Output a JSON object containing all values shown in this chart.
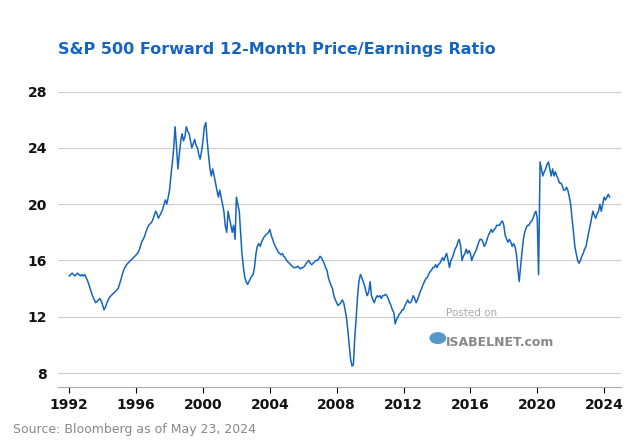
{
  "title": "S&P 500 Forward 12-Month Price/Earnings Ratio",
  "title_color": "#1565c0",
  "title_fontsize": 11.5,
  "line_color": "#1565c0",
  "line_width": 1.1,
  "background_color": "#ffffff",
  "grid_color": "#cccccc",
  "source_text": "Source: Bloomberg as of May 23, 2024",
  "source_color": "#888888",
  "source_fontsize": 9,
  "watermark_line1": "Posted on",
  "watermark_line2": "ISABELNET.com",
  "yticks": [
    8,
    12,
    16,
    20,
    24,
    28
  ],
  "xticks": [
    1992,
    1996,
    2000,
    2004,
    2008,
    2012,
    2016,
    2020,
    2024
  ],
  "ylim": [
    7.0,
    29.5
  ],
  "xlim_start": 1991.3,
  "xlim_end": 2025.0,
  "pe_data": [
    [
      1992.0,
      14.9
    ],
    [
      1992.08,
      15.0
    ],
    [
      1992.17,
      15.1
    ],
    [
      1992.25,
      15.0
    ],
    [
      1992.33,
      14.9
    ],
    [
      1992.42,
      15.0
    ],
    [
      1992.5,
      15.1
    ],
    [
      1992.58,
      15.0
    ],
    [
      1992.67,
      14.9
    ],
    [
      1992.75,
      15.0
    ],
    [
      1992.83,
      14.9
    ],
    [
      1992.92,
      15.0
    ],
    [
      1993.0,
      14.8
    ],
    [
      1993.08,
      14.6
    ],
    [
      1993.17,
      14.3
    ],
    [
      1993.25,
      14.0
    ],
    [
      1993.33,
      13.7
    ],
    [
      1993.42,
      13.4
    ],
    [
      1993.5,
      13.2
    ],
    [
      1993.58,
      13.0
    ],
    [
      1993.67,
      13.1
    ],
    [
      1993.75,
      13.2
    ],
    [
      1993.83,
      13.3
    ],
    [
      1993.92,
      13.1
    ],
    [
      1994.0,
      12.8
    ],
    [
      1994.08,
      12.5
    ],
    [
      1994.17,
      12.7
    ],
    [
      1994.25,
      13.0
    ],
    [
      1994.33,
      13.2
    ],
    [
      1994.42,
      13.4
    ],
    [
      1994.5,
      13.5
    ],
    [
      1994.58,
      13.6
    ],
    [
      1994.67,
      13.7
    ],
    [
      1994.75,
      13.8
    ],
    [
      1994.83,
      13.9
    ],
    [
      1994.92,
      14.0
    ],
    [
      1995.0,
      14.3
    ],
    [
      1995.08,
      14.6
    ],
    [
      1995.17,
      15.0
    ],
    [
      1995.25,
      15.3
    ],
    [
      1995.33,
      15.5
    ],
    [
      1995.42,
      15.7
    ],
    [
      1995.5,
      15.8
    ],
    [
      1995.58,
      15.9
    ],
    [
      1995.67,
      16.0
    ],
    [
      1995.75,
      16.1
    ],
    [
      1995.83,
      16.2
    ],
    [
      1995.92,
      16.3
    ],
    [
      1996.0,
      16.4
    ],
    [
      1996.08,
      16.5
    ],
    [
      1996.17,
      16.7
    ],
    [
      1996.25,
      17.0
    ],
    [
      1996.33,
      17.3
    ],
    [
      1996.42,
      17.5
    ],
    [
      1996.5,
      17.7
    ],
    [
      1996.58,
      18.0
    ],
    [
      1996.67,
      18.3
    ],
    [
      1996.75,
      18.5
    ],
    [
      1996.83,
      18.6
    ],
    [
      1996.92,
      18.7
    ],
    [
      1997.0,
      18.9
    ],
    [
      1997.08,
      19.2
    ],
    [
      1997.17,
      19.5
    ],
    [
      1997.25,
      19.3
    ],
    [
      1997.33,
      19.0
    ],
    [
      1997.42,
      19.2
    ],
    [
      1997.5,
      19.4
    ],
    [
      1997.58,
      19.6
    ],
    [
      1997.67,
      20.0
    ],
    [
      1997.75,
      20.3
    ],
    [
      1997.83,
      20.0
    ],
    [
      1997.92,
      20.5
    ],
    [
      1998.0,
      21.0
    ],
    [
      1998.08,
      22.0
    ],
    [
      1998.17,
      23.0
    ],
    [
      1998.25,
      24.0
    ],
    [
      1998.33,
      25.5
    ],
    [
      1998.42,
      24.0
    ],
    [
      1998.5,
      22.5
    ],
    [
      1998.58,
      23.5
    ],
    [
      1998.67,
      24.5
    ],
    [
      1998.75,
      25.0
    ],
    [
      1998.83,
      24.5
    ],
    [
      1998.92,
      24.8
    ],
    [
      1999.0,
      25.5
    ],
    [
      1999.08,
      25.2
    ],
    [
      1999.17,
      25.0
    ],
    [
      1999.25,
      24.5
    ],
    [
      1999.33,
      24.0
    ],
    [
      1999.42,
      24.3
    ],
    [
      1999.5,
      24.6
    ],
    [
      1999.58,
      24.2
    ],
    [
      1999.67,
      24.0
    ],
    [
      1999.75,
      23.5
    ],
    [
      1999.83,
      23.2
    ],
    [
      1999.92,
      23.8
    ],
    [
      2000.0,
      24.5
    ],
    [
      2000.08,
      25.5
    ],
    [
      2000.17,
      25.8
    ],
    [
      2000.25,
      24.5
    ],
    [
      2000.33,
      23.5
    ],
    [
      2000.42,
      22.5
    ],
    [
      2000.5,
      22.0
    ],
    [
      2000.58,
      22.5
    ],
    [
      2000.67,
      22.0
    ],
    [
      2000.75,
      21.5
    ],
    [
      2000.83,
      21.0
    ],
    [
      2000.92,
      20.5
    ],
    [
      2001.0,
      21.0
    ],
    [
      2001.08,
      20.5
    ],
    [
      2001.17,
      20.0
    ],
    [
      2001.25,
      19.5
    ],
    [
      2001.33,
      18.5
    ],
    [
      2001.42,
      18.0
    ],
    [
      2001.5,
      19.5
    ],
    [
      2001.58,
      19.0
    ],
    [
      2001.67,
      18.5
    ],
    [
      2001.75,
      18.0
    ],
    [
      2001.83,
      18.5
    ],
    [
      2001.92,
      17.5
    ],
    [
      2002.0,
      20.5
    ],
    [
      2002.08,
      20.0
    ],
    [
      2002.17,
      19.5
    ],
    [
      2002.25,
      18.0
    ],
    [
      2002.33,
      16.5
    ],
    [
      2002.42,
      15.5
    ],
    [
      2002.5,
      14.8
    ],
    [
      2002.58,
      14.5
    ],
    [
      2002.67,
      14.3
    ],
    [
      2002.75,
      14.5
    ],
    [
      2002.83,
      14.7
    ],
    [
      2002.92,
      14.9
    ],
    [
      2003.0,
      15.0
    ],
    [
      2003.08,
      15.5
    ],
    [
      2003.17,
      16.5
    ],
    [
      2003.25,
      17.0
    ],
    [
      2003.33,
      17.2
    ],
    [
      2003.42,
      17.0
    ],
    [
      2003.5,
      17.3
    ],
    [
      2003.58,
      17.5
    ],
    [
      2003.67,
      17.7
    ],
    [
      2003.75,
      17.8
    ],
    [
      2003.83,
      17.9
    ],
    [
      2003.92,
      18.0
    ],
    [
      2004.0,
      18.2
    ],
    [
      2004.08,
      17.8
    ],
    [
      2004.17,
      17.5
    ],
    [
      2004.25,
      17.2
    ],
    [
      2004.33,
      17.0
    ],
    [
      2004.42,
      16.8
    ],
    [
      2004.5,
      16.6
    ],
    [
      2004.58,
      16.5
    ],
    [
      2004.67,
      16.4
    ],
    [
      2004.75,
      16.5
    ],
    [
      2004.83,
      16.3
    ],
    [
      2004.92,
      16.2
    ],
    [
      2005.0,
      16.0
    ],
    [
      2005.08,
      15.9
    ],
    [
      2005.17,
      15.8
    ],
    [
      2005.25,
      15.7
    ],
    [
      2005.33,
      15.6
    ],
    [
      2005.42,
      15.5
    ],
    [
      2005.5,
      15.5
    ],
    [
      2005.58,
      15.5
    ],
    [
      2005.67,
      15.6
    ],
    [
      2005.75,
      15.5
    ],
    [
      2005.83,
      15.4
    ],
    [
      2005.92,
      15.5
    ],
    [
      2006.0,
      15.5
    ],
    [
      2006.08,
      15.6
    ],
    [
      2006.17,
      15.8
    ],
    [
      2006.25,
      15.9
    ],
    [
      2006.33,
      16.0
    ],
    [
      2006.42,
      15.8
    ],
    [
      2006.5,
      15.7
    ],
    [
      2006.58,
      15.8
    ],
    [
      2006.67,
      15.9
    ],
    [
      2006.75,
      16.0
    ],
    [
      2006.83,
      16.0
    ],
    [
      2006.92,
      16.1
    ],
    [
      2007.0,
      16.3
    ],
    [
      2007.08,
      16.2
    ],
    [
      2007.17,
      16.0
    ],
    [
      2007.25,
      15.8
    ],
    [
      2007.33,
      15.5
    ],
    [
      2007.42,
      15.3
    ],
    [
      2007.5,
      14.8
    ],
    [
      2007.58,
      14.5
    ],
    [
      2007.67,
      14.2
    ],
    [
      2007.75,
      14.0
    ],
    [
      2007.83,
      13.5
    ],
    [
      2007.92,
      13.2
    ],
    [
      2008.0,
      13.0
    ],
    [
      2008.08,
      12.8
    ],
    [
      2008.17,
      12.9
    ],
    [
      2008.25,
      13.0
    ],
    [
      2008.33,
      13.2
    ],
    [
      2008.42,
      13.0
    ],
    [
      2008.5,
      12.5
    ],
    [
      2008.58,
      12.0
    ],
    [
      2008.67,
      11.0
    ],
    [
      2008.75,
      10.0
    ],
    [
      2008.83,
      9.0
    ],
    [
      2008.92,
      8.5
    ],
    [
      2009.0,
      8.6
    ],
    [
      2009.08,
      10.5
    ],
    [
      2009.17,
      12.0
    ],
    [
      2009.25,
      13.5
    ],
    [
      2009.33,
      14.5
    ],
    [
      2009.42,
      15.0
    ],
    [
      2009.5,
      14.8
    ],
    [
      2009.58,
      14.5
    ],
    [
      2009.67,
      14.2
    ],
    [
      2009.75,
      13.8
    ],
    [
      2009.83,
      13.5
    ],
    [
      2009.92,
      13.8
    ],
    [
      2010.0,
      14.5
    ],
    [
      2010.08,
      13.5
    ],
    [
      2010.17,
      13.2
    ],
    [
      2010.25,
      13.0
    ],
    [
      2010.33,
      13.3
    ],
    [
      2010.42,
      13.5
    ],
    [
      2010.5,
      13.4
    ],
    [
      2010.58,
      13.5
    ],
    [
      2010.67,
      13.3
    ],
    [
      2010.75,
      13.5
    ],
    [
      2010.83,
      13.5
    ],
    [
      2010.92,
      13.6
    ],
    [
      2011.0,
      13.5
    ],
    [
      2011.08,
      13.3
    ],
    [
      2011.17,
      13.0
    ],
    [
      2011.25,
      12.8
    ],
    [
      2011.33,
      12.5
    ],
    [
      2011.42,
      12.3
    ],
    [
      2011.5,
      11.5
    ],
    [
      2011.58,
      11.8
    ],
    [
      2011.67,
      12.0
    ],
    [
      2011.75,
      12.2
    ],
    [
      2011.83,
      12.3
    ],
    [
      2011.92,
      12.5
    ],
    [
      2012.0,
      12.5
    ],
    [
      2012.08,
      12.8
    ],
    [
      2012.17,
      13.0
    ],
    [
      2012.25,
      13.2
    ],
    [
      2012.33,
      13.0
    ],
    [
      2012.42,
      13.0
    ],
    [
      2012.5,
      13.2
    ],
    [
      2012.58,
      13.5
    ],
    [
      2012.67,
      13.3
    ],
    [
      2012.75,
      13.0
    ],
    [
      2012.83,
      13.2
    ],
    [
      2012.92,
      13.5
    ],
    [
      2013.0,
      13.8
    ],
    [
      2013.08,
      14.0
    ],
    [
      2013.17,
      14.3
    ],
    [
      2013.25,
      14.5
    ],
    [
      2013.33,
      14.7
    ],
    [
      2013.42,
      14.8
    ],
    [
      2013.5,
      15.0
    ],
    [
      2013.58,
      15.2
    ],
    [
      2013.67,
      15.3
    ],
    [
      2013.75,
      15.5
    ],
    [
      2013.83,
      15.5
    ],
    [
      2013.92,
      15.7
    ],
    [
      2014.0,
      15.5
    ],
    [
      2014.08,
      15.7
    ],
    [
      2014.17,
      15.8
    ],
    [
      2014.25,
      16.0
    ],
    [
      2014.33,
      16.2
    ],
    [
      2014.42,
      16.0
    ],
    [
      2014.5,
      16.3
    ],
    [
      2014.58,
      16.5
    ],
    [
      2014.67,
      16.0
    ],
    [
      2014.75,
      15.5
    ],
    [
      2014.83,
      16.0
    ],
    [
      2014.92,
      16.2
    ],
    [
      2015.0,
      16.5
    ],
    [
      2015.08,
      16.8
    ],
    [
      2015.17,
      17.0
    ],
    [
      2015.25,
      17.3
    ],
    [
      2015.33,
      17.5
    ],
    [
      2015.42,
      17.0
    ],
    [
      2015.5,
      16.0
    ],
    [
      2015.58,
      16.3
    ],
    [
      2015.67,
      16.5
    ],
    [
      2015.75,
      16.8
    ],
    [
      2015.83,
      16.5
    ],
    [
      2015.92,
      16.7
    ],
    [
      2016.0,
      16.5
    ],
    [
      2016.08,
      16.0
    ],
    [
      2016.17,
      16.3
    ],
    [
      2016.25,
      16.5
    ],
    [
      2016.33,
      16.7
    ],
    [
      2016.42,
      17.0
    ],
    [
      2016.5,
      17.3
    ],
    [
      2016.58,
      17.5
    ],
    [
      2016.67,
      17.5
    ],
    [
      2016.75,
      17.3
    ],
    [
      2016.83,
      17.0
    ],
    [
      2016.92,
      17.2
    ],
    [
      2017.0,
      17.5
    ],
    [
      2017.08,
      17.8
    ],
    [
      2017.17,
      18.0
    ],
    [
      2017.25,
      18.2
    ],
    [
      2017.33,
      18.0
    ],
    [
      2017.42,
      18.2
    ],
    [
      2017.5,
      18.3
    ],
    [
      2017.58,
      18.5
    ],
    [
      2017.67,
      18.5
    ],
    [
      2017.75,
      18.5
    ],
    [
      2017.83,
      18.7
    ],
    [
      2017.92,
      18.8
    ],
    [
      2018.0,
      18.5
    ],
    [
      2018.08,
      17.8
    ],
    [
      2018.17,
      17.5
    ],
    [
      2018.25,
      17.3
    ],
    [
      2018.33,
      17.5
    ],
    [
      2018.42,
      17.3
    ],
    [
      2018.5,
      17.0
    ],
    [
      2018.58,
      17.2
    ],
    [
      2018.67,
      17.0
    ],
    [
      2018.75,
      16.5
    ],
    [
      2018.83,
      15.5
    ],
    [
      2018.92,
      14.5
    ],
    [
      2019.0,
      15.5
    ],
    [
      2019.08,
      16.5
    ],
    [
      2019.17,
      17.5
    ],
    [
      2019.25,
      18.0
    ],
    [
      2019.33,
      18.3
    ],
    [
      2019.42,
      18.5
    ],
    [
      2019.5,
      18.5
    ],
    [
      2019.58,
      18.7
    ],
    [
      2019.67,
      18.8
    ],
    [
      2019.75,
      19.0
    ],
    [
      2019.83,
      19.3
    ],
    [
      2019.92,
      19.5
    ],
    [
      2020.0,
      19.0
    ],
    [
      2020.08,
      15.0
    ],
    [
      2020.17,
      23.0
    ],
    [
      2020.25,
      22.5
    ],
    [
      2020.33,
      22.0
    ],
    [
      2020.42,
      22.3
    ],
    [
      2020.5,
      22.5
    ],
    [
      2020.58,
      22.8
    ],
    [
      2020.67,
      23.0
    ],
    [
      2020.75,
      22.5
    ],
    [
      2020.83,
      22.0
    ],
    [
      2020.92,
      22.5
    ],
    [
      2021.0,
      22.0
    ],
    [
      2021.08,
      22.3
    ],
    [
      2021.17,
      22.0
    ],
    [
      2021.25,
      21.8
    ],
    [
      2021.33,
      21.5
    ],
    [
      2021.42,
      21.5
    ],
    [
      2021.5,
      21.3
    ],
    [
      2021.58,
      21.0
    ],
    [
      2021.67,
      21.0
    ],
    [
      2021.75,
      21.2
    ],
    [
      2021.83,
      21.0
    ],
    [
      2021.92,
      20.5
    ],
    [
      2022.0,
      20.0
    ],
    [
      2022.08,
      19.0
    ],
    [
      2022.17,
      18.0
    ],
    [
      2022.25,
      17.0
    ],
    [
      2022.33,
      16.5
    ],
    [
      2022.42,
      16.0
    ],
    [
      2022.5,
      15.8
    ],
    [
      2022.58,
      16.0
    ],
    [
      2022.67,
      16.3
    ],
    [
      2022.75,
      16.5
    ],
    [
      2022.83,
      16.8
    ],
    [
      2022.92,
      17.0
    ],
    [
      2023.0,
      17.5
    ],
    [
      2023.08,
      18.0
    ],
    [
      2023.17,
      18.5
    ],
    [
      2023.25,
      19.0
    ],
    [
      2023.33,
      19.5
    ],
    [
      2023.42,
      19.2
    ],
    [
      2023.5,
      19.0
    ],
    [
      2023.58,
      19.3
    ],
    [
      2023.67,
      19.5
    ],
    [
      2023.75,
      20.0
    ],
    [
      2023.83,
      19.5
    ],
    [
      2023.92,
      20.0
    ],
    [
      2024.0,
      20.5
    ],
    [
      2024.08,
      20.3
    ],
    [
      2024.17,
      20.5
    ],
    [
      2024.25,
      20.7
    ],
    [
      2024.33,
      20.5
    ]
  ]
}
